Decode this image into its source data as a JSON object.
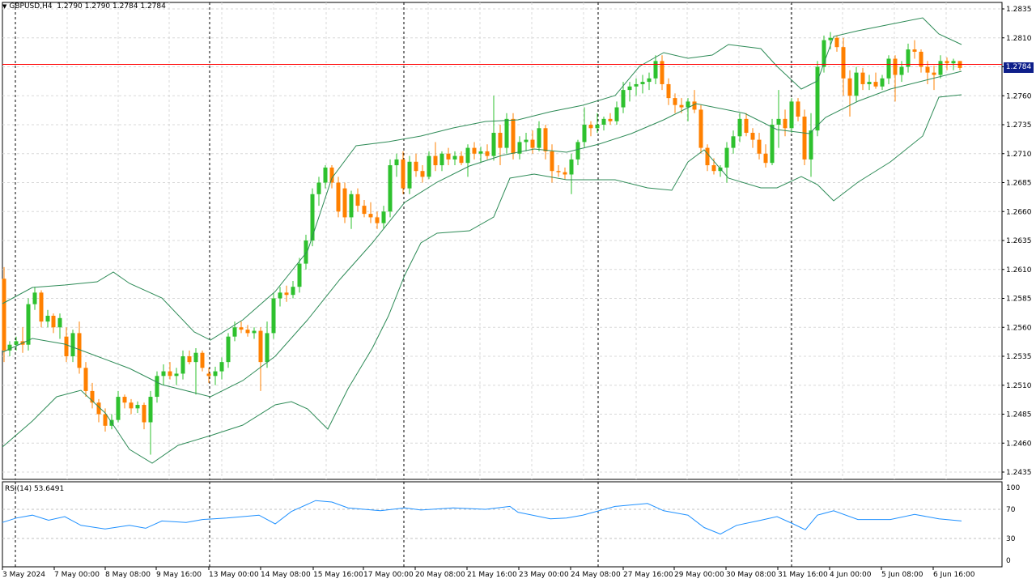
{
  "header": {
    "symbol": "GBPUSD,H4",
    "ohlc": "1.2790 1.2790 1.2784 1.2784"
  },
  "price_axis": {
    "labels": [
      "1.2835",
      "1.2810",
      "1.2785",
      "1.2760",
      "1.2735",
      "1.2710",
      "1.2685",
      "1.2660",
      "1.2635",
      "1.2610",
      "1.2585",
      "1.2560",
      "1.2535",
      "1.2510",
      "1.2485",
      "1.2460",
      "1.2435"
    ],
    "current_price": "1.2784"
  },
  "time_axis": {
    "labels": [
      "3 May 2024",
      "7 May 00:00",
      "8 May 08:00",
      "9 May 16:00",
      "13 May 00:00",
      "14 May 08:00",
      "15 May 16:00",
      "17 May 00:00",
      "20 May 08:00",
      "21 May 16:00",
      "23 May 00:00",
      "24 May 08:00",
      "27 May 16:00",
      "29 May 00:00",
      "30 May 08:00",
      "31 May 16:00",
      "4 Jun 00:00",
      "5 Jun 08:00",
      "6 Jun 16:00"
    ]
  },
  "rsi": {
    "label": "RSI(14) 53.6491",
    "axis_labels": [
      "100",
      "70",
      "30",
      "0"
    ]
  },
  "colors": {
    "bull": "#2ec12e",
    "bear": "#ff8000",
    "band": "#2e8b57",
    "rsi_line": "#1e90ff",
    "price_line": "#ff0000",
    "price_tag_bg": "#0e1f8a"
  }
}
